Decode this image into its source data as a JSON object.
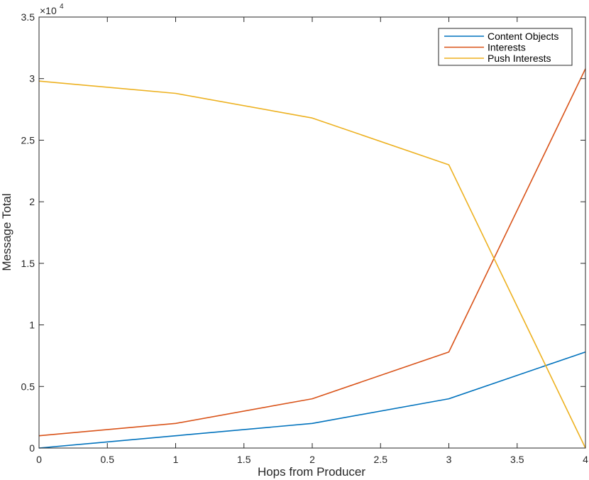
{
  "chart_data": {
    "type": "line",
    "title": "",
    "xlabel": "Hops from Producer",
    "ylabel": "Message Total",
    "xlim": [
      0,
      4
    ],
    "ylim": [
      0,
      35000
    ],
    "x_ticks": [
      0,
      0.5,
      1,
      1.5,
      2,
      2.5,
      3,
      3.5,
      4
    ],
    "x_tick_labels": [
      "0",
      "0.5",
      "1",
      "1.5",
      "2",
      "2.5",
      "3",
      "3.5",
      "4"
    ],
    "y_ticks": [
      0,
      5000,
      10000,
      15000,
      20000,
      25000,
      30000,
      35000
    ],
    "y_tick_labels": [
      "0",
      "0.5",
      "1",
      "1.5",
      "2",
      "2.5",
      "3",
      "3.5"
    ],
    "y_exponent_base": "×10",
    "y_exponent_power": "4",
    "grid": false,
    "legend_position": "top-right",
    "x": [
      0,
      1,
      2,
      3,
      4
    ],
    "series": [
      {
        "name": "Content Objects",
        "color": "#0072BD",
        "values": [
          0,
          1000,
          2000,
          4000,
          7800
        ]
      },
      {
        "name": "Interests",
        "color": "#D95319",
        "values": [
          1000,
          2000,
          4000,
          7800,
          30800
        ]
      },
      {
        "name": "Push Interests",
        "color": "#EDB120",
        "values": [
          29800,
          28800,
          26800,
          23000,
          0
        ]
      }
    ]
  }
}
